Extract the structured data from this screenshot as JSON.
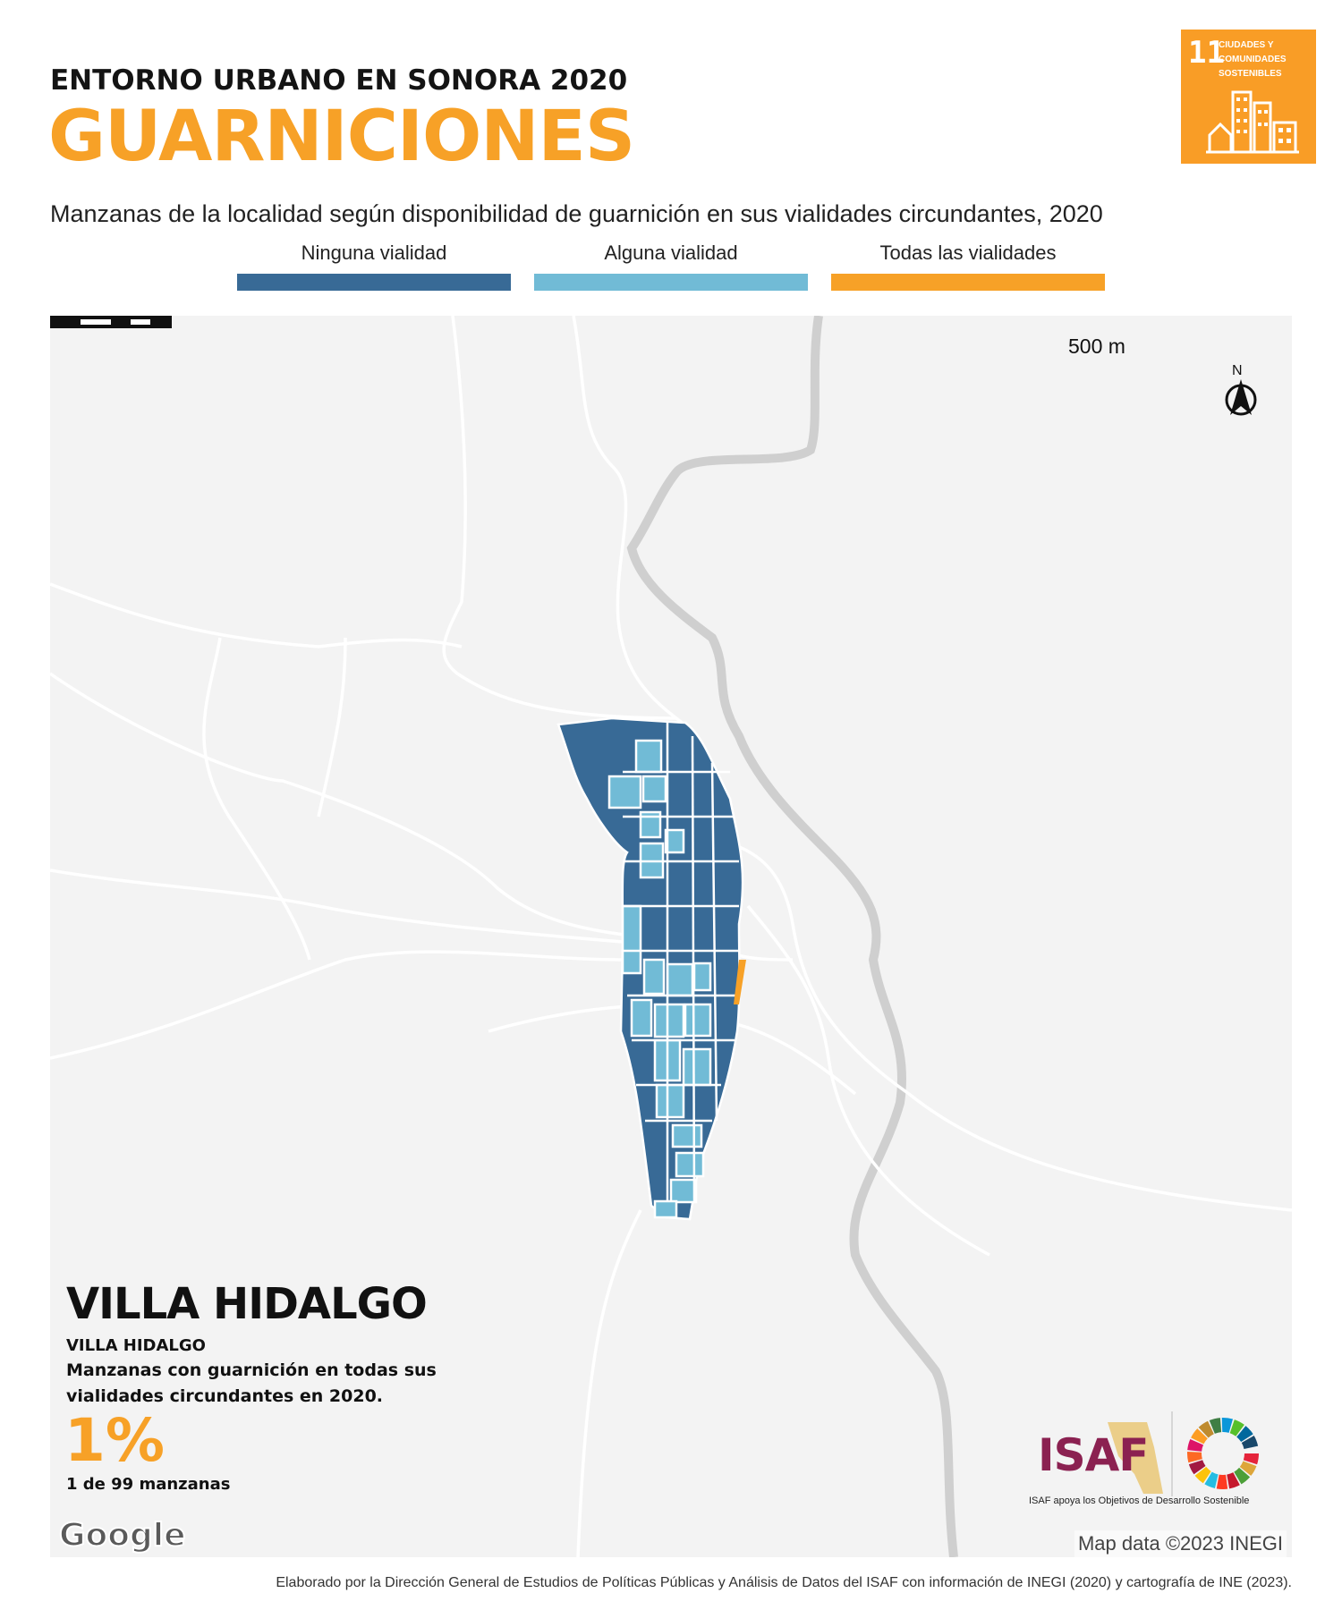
{
  "header": {
    "kicker": "ENTORNO URBANO EN SONORA 2020",
    "title": "GUARNICIONES",
    "subtitle": "Manzanas de la localidad según disponibilidad de guarnición en sus vialidades circundantes, 2020"
  },
  "legend": [
    {
      "label": "Ninguna vialidad",
      "color": "#386A96"
    },
    {
      "label": "Alguna vialidad",
      "color": "#71BBD6"
    },
    {
      "label": "Todas las vialidades",
      "color": "#F7A127"
    }
  ],
  "sdg": {
    "number": "11",
    "text": [
      "CIUDADES Y",
      "COMUNIDADES",
      "SOSTENIBLES"
    ],
    "color": "#F99D26"
  },
  "map": {
    "background": "#f3f3f3",
    "scale_label": "500 m",
    "north_label": "N",
    "locality": "VILLA HIDALGO",
    "municipality": "VILLA HIDALGO",
    "description": "Manzanas con guarnición en todas sus vialidades circundantes en 2020.",
    "percent": "1%",
    "count": "1 de 99 manzanas",
    "google": "Google",
    "map_data": "Map data ©2023 INEGI"
  },
  "logos": {
    "isaf": "ISAF",
    "isaf_caption": "ISAF apoya los Objetivos de Desarrollo Sostenible"
  },
  "footer": {
    "credit": "Elaborado por la Dirección General de Estudios de Políticas Públicas y Análisis de Datos del ISAF con información de INEGI (2020) y cartografía de INE (2023)."
  }
}
